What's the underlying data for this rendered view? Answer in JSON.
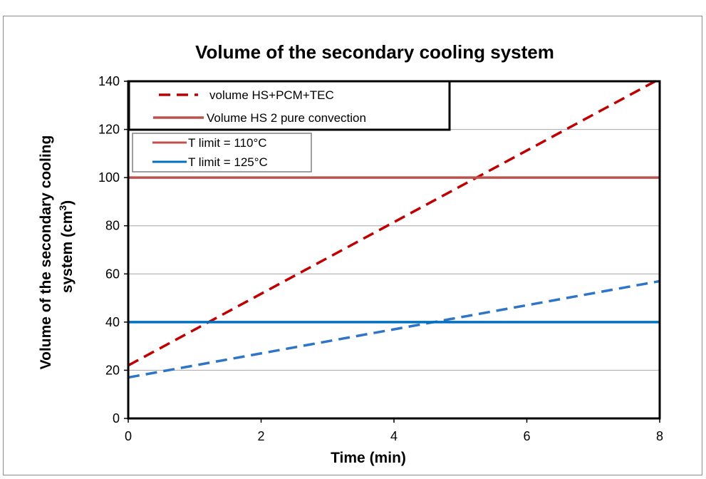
{
  "chart_data": {
    "type": "line",
    "title": "Volume of the secondary cooling system",
    "xlabel": "Time (min)",
    "ylabel_line1": "Volume of the secondary cooling",
    "ylabel_line2": "system (cm",
    "ylabel_sup": "3",
    "ylabel_end": ")",
    "xlim": [
      0,
      8
    ],
    "ylim": [
      0,
      140
    ],
    "xticks": [
      "0",
      "2",
      "4",
      "6",
      "8"
    ],
    "yticks": [
      "0",
      "20",
      "40",
      "60",
      "80",
      "100",
      "120",
      "140"
    ],
    "grid": true,
    "legend_top": [
      {
        "label": "volume HS+PCM+TEC",
        "color": "#c00000",
        "style": "dashed"
      },
      {
        "label": "Volume HS 2  pure convection",
        "color": "#c0504d",
        "style": "solid"
      }
    ],
    "legend_bottom": [
      {
        "label": "T limit = 110°C",
        "color": "#c0504d",
        "style": "solid"
      },
      {
        "label": "T limit = 125°C",
        "color": "#0070c0",
        "style": "solid"
      }
    ],
    "series": [
      {
        "color": "#c00000",
        "style": "dashed",
        "x": [
          0,
          8
        ],
        "y": [
          22,
          141
        ]
      },
      {
        "color": "#c0504d",
        "style": "solid",
        "x": [
          0,
          8
        ],
        "y": [
          100,
          100
        ]
      },
      {
        "color": "#2e75c8",
        "style": "dashed",
        "x": [
          0,
          8
        ],
        "y": [
          17,
          57
        ]
      },
      {
        "color": "#0070c0",
        "style": "solid",
        "x": [
          0,
          8
        ],
        "y": [
          40,
          40
        ]
      }
    ]
  }
}
